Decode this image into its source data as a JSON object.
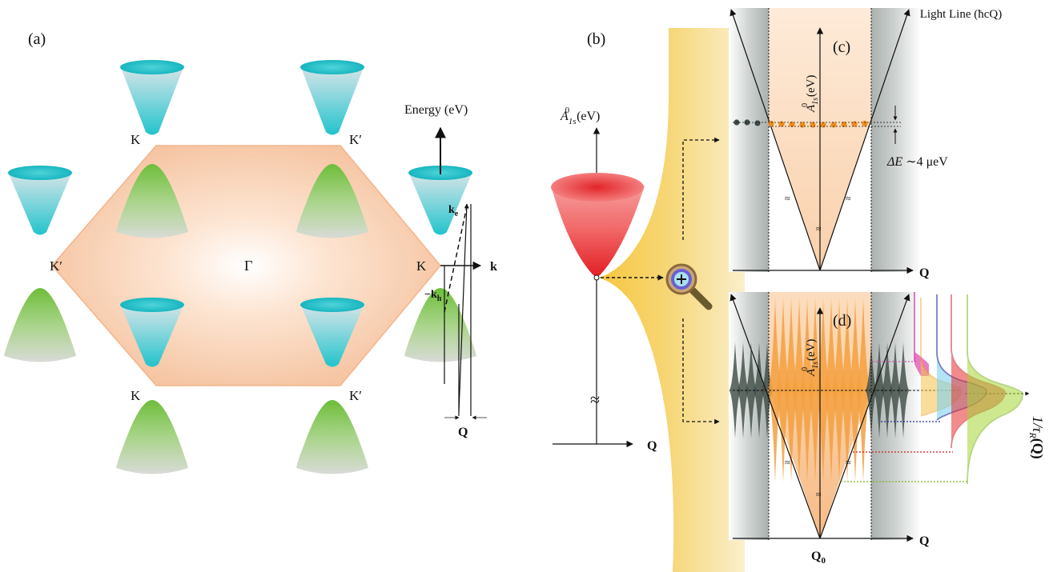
{
  "panel_a": {
    "label": "(a)",
    "energy_axis": "Energy (eV)",
    "k_axis": "k",
    "gamma": "Γ",
    "K": "K",
    "Kprime": "K′",
    "ke": "k",
    "ke_sub": "e",
    "kh": "−k",
    "kh_sub": "h",
    "Q": "Q"
  },
  "panel_b": {
    "label": "(b)",
    "ylabel_main": "A",
    "ylabel_sub": "1s",
    "ylabel_sup": "0",
    "ylabel_unit": " (eV)",
    "xlabel": "Q",
    "break": "≈"
  },
  "panel_c": {
    "label": "(c)",
    "light_line": "Light Line (ħcQ)",
    "ylabel_main": "A",
    "ylabel_sub": "1s",
    "ylabel_sup": "0",
    "ylabel_unit": " (eV)",
    "delta_E_sym": "ΔE",
    "delta_E_val": " ∼4 μeV",
    "xlabel": "Q"
  },
  "panel_d": {
    "label": "(d)",
    "ylabel_main": "A",
    "ylabel_sub": "1s",
    "ylabel_sup": "0",
    "ylabel_unit": " (eV)",
    "xlabel": "Q",
    "q0": "Q",
    "q0_sub": "0",
    "rate_label": "1/τ",
    "rate_sub": "R",
    "rate_arg": "(Q)"
  },
  "colors": {
    "valley_cyan": "#2bc7cf",
    "valley_green": "#78c046",
    "hexagon": "#f6c6a4",
    "exciton_red": "#e8262a",
    "gold": "#f2c23c",
    "orange_dots": "#f08c1a"
  }
}
